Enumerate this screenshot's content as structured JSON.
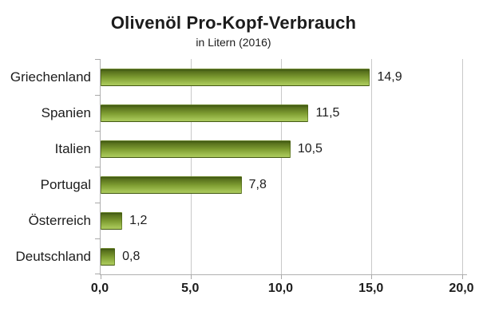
{
  "header": {
    "title": "Olivenöl Pro-Kopf-Verbrauch",
    "subtitle": "in Litern (2016)"
  },
  "chart_data": {
    "type": "bar",
    "orientation": "horizontal",
    "title": "Olivenöl Pro-Kopf-Verbrauch",
    "subtitle": "in Litern (2016)",
    "categories": [
      "Griechenland",
      "Spanien",
      "Italien",
      "Portugal",
      "Österreich",
      "Deutschland"
    ],
    "values": [
      14.9,
      11.5,
      10.5,
      7.8,
      1.2,
      0.8
    ],
    "value_labels": [
      "14,9",
      "11,5",
      "10,5",
      "7,8",
      "1,2",
      "0,8"
    ],
    "xlim": [
      0,
      20
    ],
    "x_ticks": [
      {
        "value": 0,
        "label": "0,0"
      },
      {
        "value": 5,
        "label": "5,0"
      },
      {
        "value": 10,
        "label": "10,0"
      },
      {
        "value": 15,
        "label": "15,0"
      },
      {
        "value": 20,
        "label": "20,0"
      }
    ],
    "grid": "vertical-lines-at-ticks",
    "legend": "none",
    "colors": {
      "bar_gradient_top": "#3d5510",
      "bar_gradient_mid": "#7e9d32",
      "bar_gradient_bottom": "#abc95e",
      "axis_line": "#b0b0b0",
      "gridline": "#c9c9c9",
      "tick": "#a8a8a8",
      "text": "#1c1c1c",
      "background": "#ffffff"
    }
  }
}
